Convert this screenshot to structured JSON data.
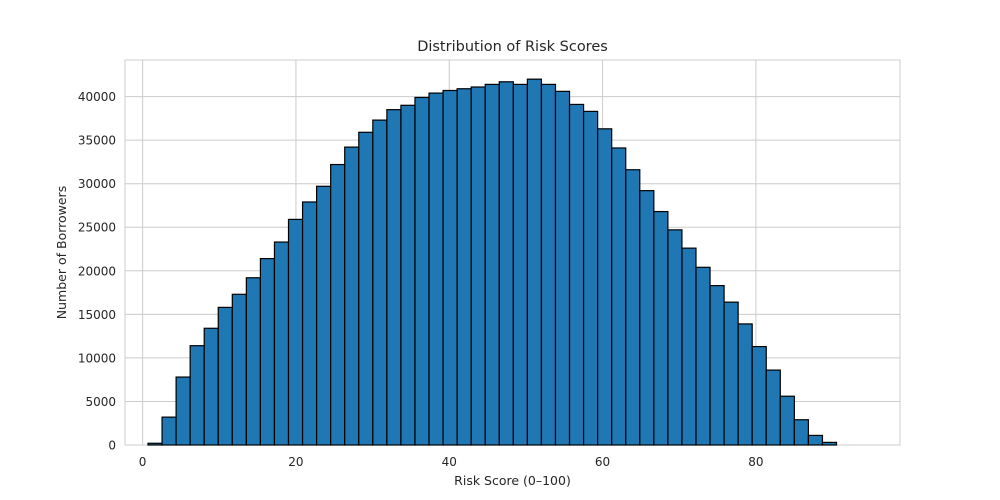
{
  "chart_data": {
    "type": "bar",
    "title": "Distribution of Risk Scores",
    "xlabel": "Risk Score (0–100)",
    "ylabel": "Number of Borrowers",
    "xlim": [
      -2.3,
      98.8
    ],
    "ylim": [
      0,
      44200
    ],
    "xticks": [
      0,
      20,
      40,
      60,
      80
    ],
    "yticks": [
      0,
      5000,
      10000,
      15000,
      20000,
      25000,
      30000,
      35000,
      40000
    ],
    "grid": true,
    "bar_color": "#1f77b4",
    "bin_start": 0.7,
    "bin_width": 1.833,
    "values": [
      200,
      3200,
      7800,
      11400,
      13400,
      15800,
      17300,
      19200,
      21400,
      23300,
      25900,
      27900,
      29700,
      32200,
      34200,
      35900,
      37300,
      38500,
      39000,
      39900,
      40400,
      40700,
      40900,
      41100,
      41400,
      41700,
      41400,
      42000,
      41400,
      40600,
      39100,
      38300,
      36300,
      34100,
      31600,
      29200,
      26800,
      24700,
      22600,
      20400,
      18300,
      16400,
      13900,
      11300,
      8600,
      5600,
      2900,
      1100,
      300
    ]
  }
}
